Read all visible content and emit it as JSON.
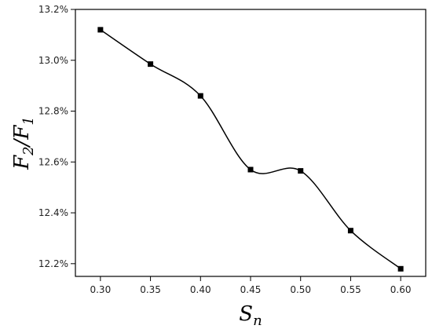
{
  "chart_data": {
    "type": "line",
    "title": "",
    "xlabel": "S_n",
    "ylabel": "F_2/F_1",
    "xlabel_parts": {
      "main": "S",
      "sub": "n"
    },
    "ylabel_parts": {
      "main1": "F",
      "sub1": "2",
      "slash": "/",
      "main2": "F",
      "sub2": "1"
    },
    "xlim": [
      0.275,
      0.625
    ],
    "ylim": [
      12.15,
      13.2
    ],
    "x_ticks": [
      "0.30",
      "0.35",
      "0.40",
      "0.45",
      "0.50",
      "0.55",
      "0.60"
    ],
    "y_ticks": [
      "12.2%",
      "12.4%",
      "12.6%",
      "12.8%",
      "13.0%",
      "13.2%"
    ],
    "grid": false,
    "legend": "none",
    "series": [
      {
        "marker": "square",
        "smooth": true,
        "color": "#000000",
        "x": [
          0.3,
          0.35,
          0.4,
          0.45,
          0.5,
          0.55,
          0.6
        ],
        "y": [
          13.12,
          12.985,
          12.86,
          12.57,
          12.565,
          12.33,
          12.18
        ]
      }
    ]
  }
}
